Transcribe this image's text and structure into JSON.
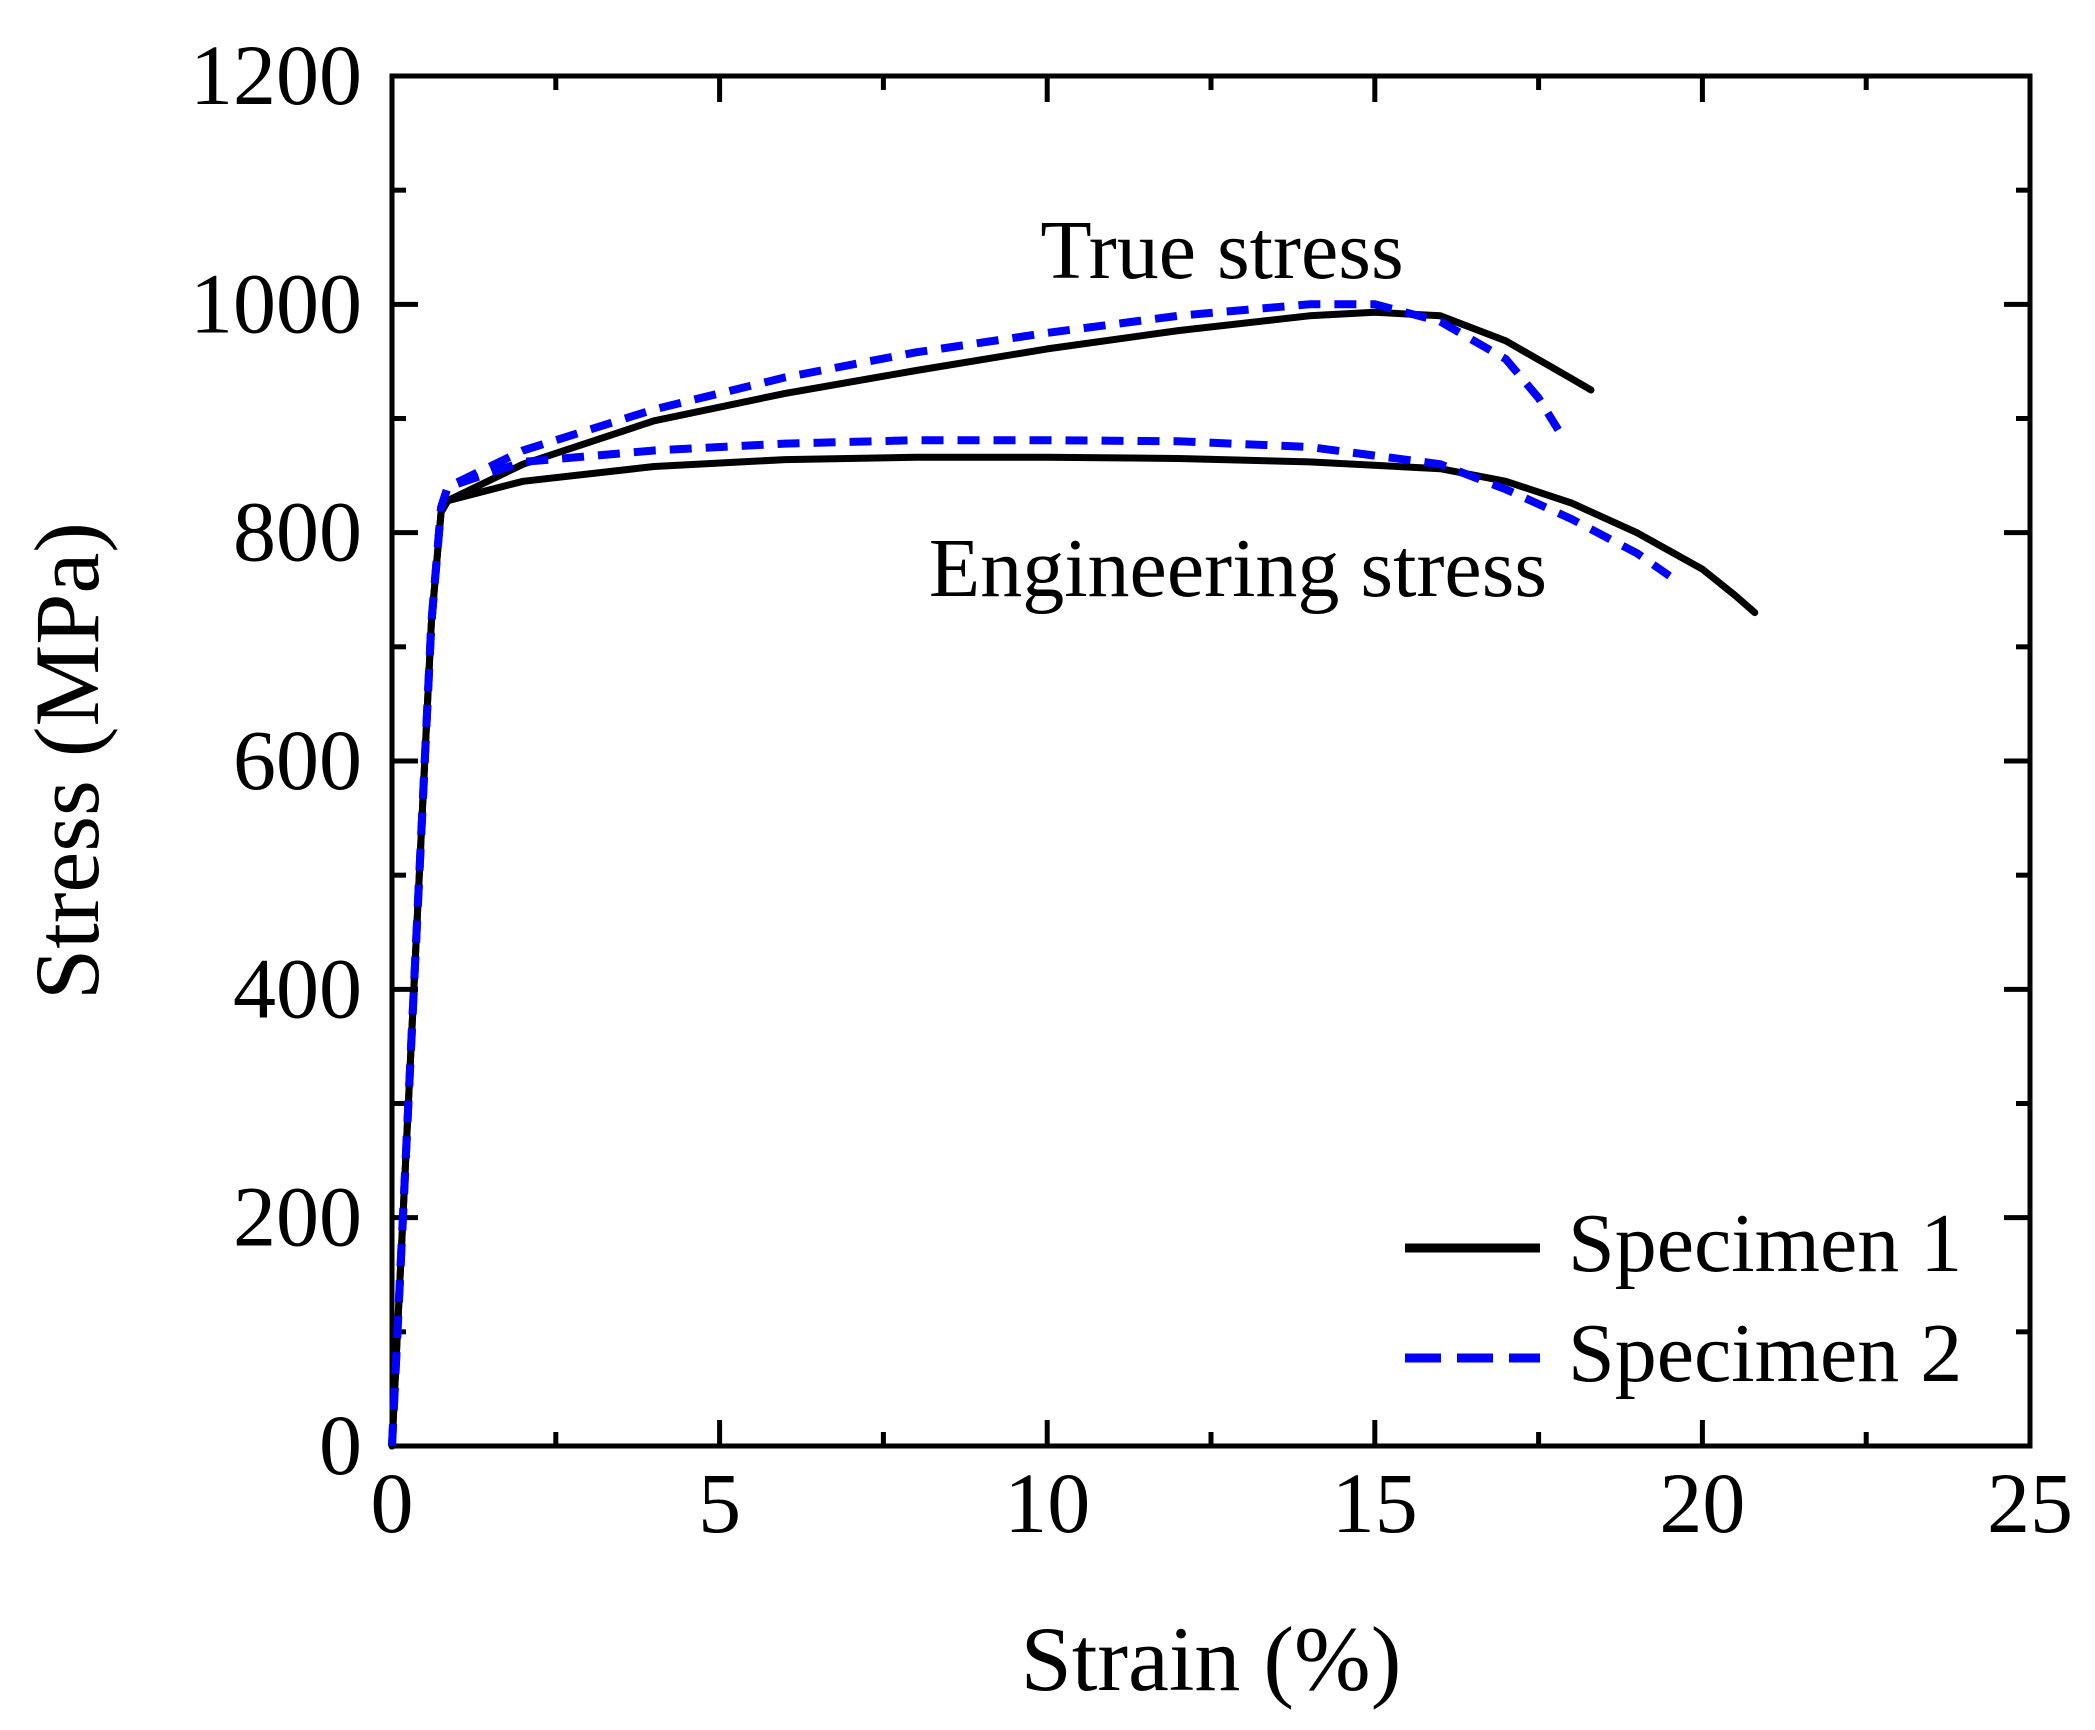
{
  "chart_data": {
    "type": "line",
    "title": "",
    "xlabel": "Strain (%)",
    "ylabel": "Stress (MPa)",
    "xlim": [
      0,
      25
    ],
    "ylim": [
      0,
      1200
    ],
    "xticks": [
      0,
      5,
      10,
      15,
      20,
      25
    ],
    "xtick_labels": [
      "0",
      "5",
      "10",
      "15",
      "20",
      "25"
    ],
    "yticks": [
      0,
      200,
      400,
      600,
      800,
      1000,
      1200
    ],
    "ytick_labels": [
      "0",
      "200",
      "400",
      "600",
      "800",
      "1000",
      "1200"
    ],
    "grid": false,
    "legend_position": "bottom-right",
    "annotations": {
      "true_stress": "True stress",
      "engineering_stress": "Engineering stress"
    },
    "series": [
      {
        "name": "Specimen 1",
        "curve": "true",
        "style": "solid",
        "color": "#000000",
        "x": [
          0,
          0.2,
          0.4,
          0.6,
          0.75,
          0.85,
          2,
          4,
          6,
          8,
          10,
          12,
          14,
          15,
          16,
          17,
          18,
          18.3
        ],
        "y": [
          0,
          240,
          480,
          720,
          818,
          828,
          860,
          898,
          922,
          942,
          961,
          977,
          990,
          993,
          990,
          968,
          935,
          925
        ]
      },
      {
        "name": "Specimen 2",
        "curve": "true",
        "style": "dashed",
        "color": "#0000ff",
        "x": [
          0,
          0.2,
          0.4,
          0.6,
          0.75,
          0.85,
          2,
          4,
          6,
          8,
          10,
          12,
          14,
          15,
          16,
          17,
          17.5,
          17.8
        ],
        "y": [
          0,
          240,
          480,
          720,
          822,
          840,
          872,
          908,
          936,
          958,
          975,
          990,
          1000,
          1000,
          985,
          952,
          918,
          890
        ]
      },
      {
        "name": "Specimen 1",
        "curve": "engineering",
        "style": "solid",
        "color": "#000000",
        "x": [
          0,
          0.2,
          0.4,
          0.6,
          0.75,
          0.85,
          2,
          4,
          6,
          8,
          10,
          12,
          14,
          16,
          17,
          18,
          19,
          20,
          20.5,
          20.8
        ],
        "y": [
          0,
          240,
          480,
          720,
          818,
          828,
          845,
          858,
          864,
          866,
          866,
          865,
          862,
          856,
          845,
          826,
          800,
          768,
          745,
          730
        ]
      },
      {
        "name": "Specimen 2",
        "curve": "engineering",
        "style": "dashed",
        "color": "#0000ff",
        "x": [
          0,
          0.2,
          0.4,
          0.6,
          0.75,
          0.85,
          2,
          4,
          6,
          8,
          10,
          12,
          14,
          16,
          17,
          18,
          19,
          19.5
        ],
        "y": [
          0,
          240,
          480,
          720,
          822,
          840,
          862,
          872,
          878,
          881,
          881,
          880,
          875,
          860,
          838,
          812,
          782,
          762
        ]
      }
    ],
    "legend": [
      {
        "label": "Specimen 1",
        "style": "solid",
        "color": "#000000"
      },
      {
        "label": "Specimen 2",
        "style": "dashed",
        "color": "#0000ff"
      }
    ]
  }
}
